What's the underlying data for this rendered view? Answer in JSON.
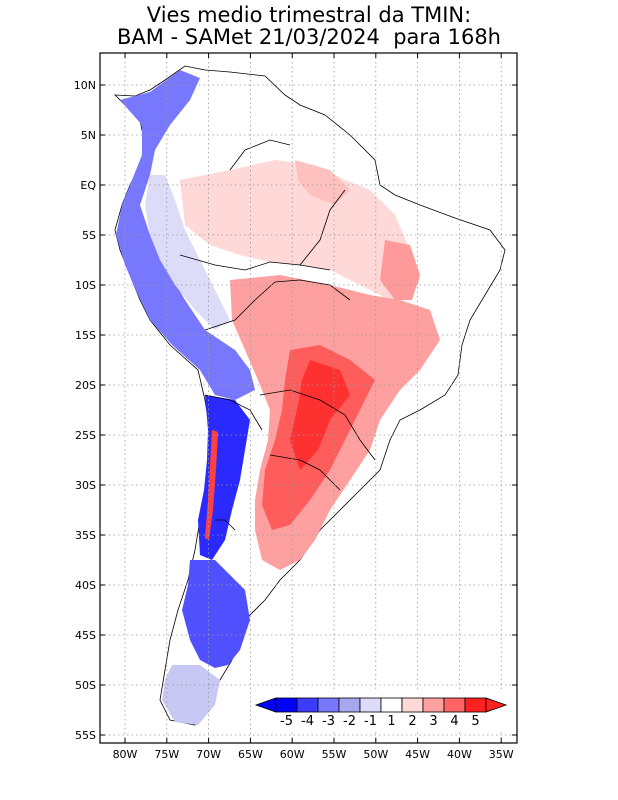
{
  "title": {
    "line1": "Vies medio trimestral da TMIN:",
    "line2": "BAM - SAMet 21/03/2024  para 168h"
  },
  "map": {
    "lat_ticks": [
      "10N",
      "5N",
      "EQ",
      "5S",
      "10S",
      "15S",
      "20S",
      "25S",
      "30S",
      "35S",
      "40S",
      "45S",
      "50S",
      "55S"
    ],
    "lon_ticks": [
      "80W",
      "75W",
      "70W",
      "65W",
      "60W",
      "55W",
      "50W",
      "45W",
      "40W",
      "35W"
    ],
    "lat_range": [
      -55,
      12
    ],
    "lon_range": [
      -82,
      -35
    ]
  },
  "colorbar": {
    "labels": [
      "-5",
      "-4",
      "-3",
      "-2",
      "-1",
      "1",
      "2",
      "3",
      "4",
      "5"
    ],
    "colors": [
      "#0000ff",
      "#3c3cff",
      "#7878ff",
      "#a8a8f0",
      "#dcdcf8",
      "#ffffff",
      "#ffd8d8",
      "#ffa0a0",
      "#ff6464",
      "#ff2020"
    ]
  }
}
